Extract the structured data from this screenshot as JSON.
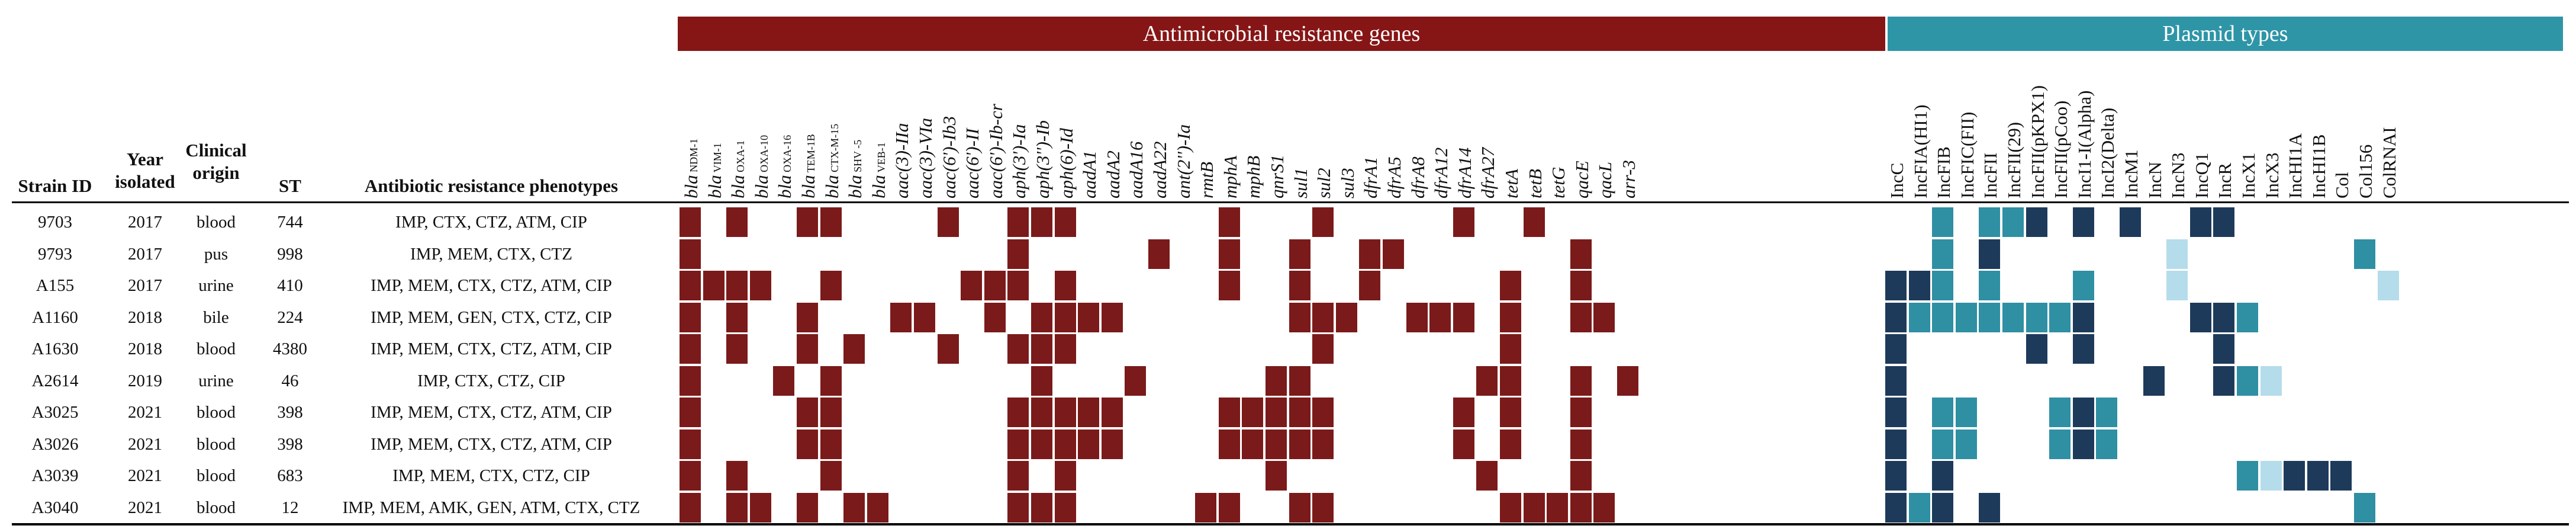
{
  "banners": {
    "amr": "Antimicrobial resistance genes",
    "plasmid": "Plasmid types"
  },
  "headers": {
    "strain_id": "Strain ID",
    "year": "Year isolated",
    "origin": "Clinical origin",
    "st": "ST",
    "phenotypes": "Antibiotic resistance phenotypes"
  },
  "gene_columns": [
    {
      "pre": "bla",
      "sub": "NDM-1",
      "post": ""
    },
    {
      "pre": "bla",
      "sub": "VIM-1",
      "post": ""
    },
    {
      "pre": "bla",
      "sub": "OXA-1",
      "post": ""
    },
    {
      "pre": "bla",
      "sub": "OXA-10",
      "post": ""
    },
    {
      "pre": "bla",
      "sub": "OXA-16",
      "post": ""
    },
    {
      "pre": "bla",
      "sub": "TEM-1B",
      "post": ""
    },
    {
      "pre": "bla",
      "sub": "CTX-M-15",
      "post": ""
    },
    {
      "pre": "bla",
      "sub": "SHV -5",
      "post": ""
    },
    {
      "pre": "bla",
      "sub": "VEB-1",
      "post": ""
    },
    {
      "pre": "aac(3)-IIa",
      "sub": "",
      "post": ""
    },
    {
      "pre": "aac(3)-VIa",
      "sub": "",
      "post": ""
    },
    {
      "pre": "aac(6')-Ib3",
      "sub": "",
      "post": ""
    },
    {
      "pre": "aac(6')-II",
      "sub": "",
      "post": ""
    },
    {
      "pre": "aac(6')-Ib-cr",
      "sub": "",
      "post": ""
    },
    {
      "pre": "aph(3')-Ia",
      "sub": "",
      "post": ""
    },
    {
      "pre": "aph(3'')-Ib",
      "sub": "",
      "post": ""
    },
    {
      "pre": "aph(6)-Id",
      "sub": "",
      "post": ""
    },
    {
      "pre": "aadA1",
      "sub": "",
      "post": ""
    },
    {
      "pre": "aadA2",
      "sub": "",
      "post": ""
    },
    {
      "pre": "aadA16",
      "sub": "",
      "post": ""
    },
    {
      "pre": "aadA22",
      "sub": "",
      "post": ""
    },
    {
      "pre": "ant(2'')-Ia",
      "sub": "",
      "post": ""
    },
    {
      "pre": "rmtB",
      "sub": "",
      "post": ""
    },
    {
      "pre": "mphA",
      "sub": "",
      "post": ""
    },
    {
      "pre": "mphB",
      "sub": "",
      "post": ""
    },
    {
      "pre": "qnrS1",
      "sub": "",
      "post": ""
    },
    {
      "pre": "sul1",
      "sub": "",
      "post": ""
    },
    {
      "pre": "sul2",
      "sub": "",
      "post": ""
    },
    {
      "pre": "sul3",
      "sub": "",
      "post": ""
    },
    {
      "pre": "dfrA1",
      "sub": "",
      "post": ""
    },
    {
      "pre": "dfrA5",
      "sub": "",
      "post": ""
    },
    {
      "pre": "dfrA8",
      "sub": "",
      "post": ""
    },
    {
      "pre": "dfrA12",
      "sub": "",
      "post": ""
    },
    {
      "pre": "dfrA14",
      "sub": "",
      "post": ""
    },
    {
      "pre": "dfrA27",
      "sub": "",
      "post": ""
    },
    {
      "pre": "tetA",
      "sub": "",
      "post": ""
    },
    {
      "pre": "tetB",
      "sub": "",
      "post": ""
    },
    {
      "pre": "tetG",
      "sub": "",
      "post": ""
    },
    {
      "pre": "qacE",
      "sub": "",
      "post": ""
    },
    {
      "pre": "qacL",
      "sub": "",
      "post": ""
    },
    {
      "pre": "arr-3",
      "sub": "",
      "post": ""
    }
  ],
  "plasmid_columns": [
    "IncC",
    "IncFIA(HI1)",
    "IncFIB",
    "IncFIC(FII)",
    "IncFII",
    "IncFII(29)",
    "IncFII(pKPX1)",
    "IncFII(pCoo)",
    "IncI1-I(Alpha)",
    "IncI2(Delta)",
    "IncM1",
    "IncN",
    "IncN3",
    "IncQ1",
    "IncR",
    "IncX1",
    "IncX3",
    "IncHI1A",
    "IncHI1B",
    "Col",
    "Col156",
    "ColRNAI"
  ],
  "colors": {
    "amr": "#7b1a1a",
    "amr_banner": "#861616",
    "plasmid_banner": "#2e95a7",
    "dark": "#1e3a5a",
    "teal": "#2f8fa3",
    "light": "#b5dcea"
  },
  "rows": [
    {
      "strain": "9703",
      "year": "2017",
      "origin": "blood",
      "st": "744",
      "phenotypes": "IMP, CTX, CTZ, ATM, CIP",
      "genes": [
        0,
        6,
        2,
        5,
        6,
        11,
        14,
        15,
        16,
        23,
        27,
        33,
        36
      ],
      "plasmids": [
        [
          "teal",
          2
        ],
        [
          "teal",
          4
        ],
        [
          "teal",
          5
        ],
        [
          "dark",
          6
        ],
        [
          "dark",
          8
        ],
        [
          "dark",
          10
        ],
        [
          "dark",
          13
        ],
        [
          "dark",
          14
        ]
      ]
    },
    {
      "strain": "9793",
      "year": "2017",
      "origin": "pus",
      "st": "998",
      "phenotypes": "IMP, MEM, CTX, CTZ",
      "genes": [
        0,
        14,
        20,
        23,
        26,
        29,
        30,
        38
      ],
      "plasmids": [
        [
          "teal",
          2
        ],
        [
          "dark",
          4
        ],
        [
          "light",
          12
        ],
        [
          "teal",
          20
        ]
      ]
    },
    {
      "strain": "A155",
      "year": "2017",
      "origin": "urine",
      "st": "410",
      "phenotypes": "IMP, MEM, CTX, CTZ, ATM, CIP",
      "genes": [
        0,
        1,
        2,
        3,
        6,
        12,
        13,
        14,
        16,
        23,
        26,
        29,
        35,
        38
      ],
      "plasmids": [
        [
          "dark",
          0
        ],
        [
          "dark",
          1
        ],
        [
          "teal",
          2
        ],
        [
          "teal",
          4
        ],
        [
          "teal",
          8
        ],
        [
          "light",
          12
        ],
        [
          "light",
          21
        ]
      ]
    },
    {
      "strain": "A1160",
      "year": "2018",
      "origin": "bile",
      "st": "224",
      "phenotypes": "IMP, MEM, GEN, CTX, CTZ, CIP",
      "genes": [
        0,
        2,
        5,
        9,
        10,
        13,
        15,
        16,
        17,
        18,
        26,
        27,
        28,
        31,
        32,
        33,
        35,
        38,
        39
      ],
      "plasmids": [
        [
          "dark",
          0
        ],
        [
          "teal",
          1
        ],
        [
          "teal",
          2
        ],
        [
          "teal",
          3
        ],
        [
          "teal",
          4
        ],
        [
          "teal",
          5
        ],
        [
          "teal",
          6
        ],
        [
          "teal",
          7
        ],
        [
          "dark",
          8
        ],
        [
          "dark",
          13
        ],
        [
          "dark",
          14
        ],
        [
          "teal",
          15
        ]
      ]
    },
    {
      "strain": "A1630",
      "year": "2018",
      "origin": "blood",
      "st": "4380",
      "phenotypes": "IMP, MEM, CTX, CTZ, ATM, CIP",
      "genes": [
        0,
        2,
        5,
        7,
        11,
        14,
        15,
        16,
        27,
        35
      ],
      "plasmids": [
        [
          "dark",
          0
        ],
        [
          "dark",
          6
        ],
        [
          "dark",
          8
        ],
        [
          "dark",
          14
        ]
      ]
    },
    {
      "strain": "A2614",
      "year": "2019",
      "origin": "urine",
      "st": "46",
      "phenotypes": "IMP, CTX, CTZ, CIP",
      "genes": [
        0,
        4,
        6,
        15,
        19,
        25,
        26,
        34,
        35,
        38,
        40
      ],
      "plasmids": [
        [
          "dark",
          0
        ],
        [
          "dark",
          11
        ],
        [
          "dark",
          14
        ],
        [
          "teal",
          15
        ],
        [
          "light",
          16
        ]
      ]
    },
    {
      "strain": "A3025",
      "year": "2021",
      "origin": "blood",
      "st": "398",
      "phenotypes": "IMP, MEM, CTX, CTZ, ATM, CIP",
      "genes": [
        0,
        5,
        6,
        14,
        15,
        16,
        17,
        18,
        23,
        24,
        25,
        26,
        27,
        33,
        35,
        38
      ],
      "plasmids": [
        [
          "dark",
          0
        ],
        [
          "teal",
          2
        ],
        [
          "teal",
          3
        ],
        [
          "teal",
          7
        ],
        [
          "dark",
          8
        ],
        [
          "teal",
          9
        ]
      ]
    },
    {
      "strain": "A3026",
      "year": "2021",
      "origin": "blood",
      "st": "398",
      "phenotypes": "IMP, MEM, CTX, CTZ, ATM, CIP",
      "genes": [
        0,
        5,
        6,
        14,
        15,
        16,
        17,
        18,
        23,
        24,
        25,
        26,
        27,
        33,
        35,
        38
      ],
      "plasmids": [
        [
          "dark",
          0
        ],
        [
          "teal",
          2
        ],
        [
          "teal",
          3
        ],
        [
          "teal",
          7
        ],
        [
          "dark",
          8
        ],
        [
          "teal",
          9
        ]
      ]
    },
    {
      "strain": "A3039",
      "year": "2021",
      "origin": "blood",
      "st": "683",
      "phenotypes": "IMP, MEM, CTX, CTZ, CIP",
      "genes": [
        0,
        2,
        6,
        14,
        16,
        25,
        34,
        38
      ],
      "plasmids": [
        [
          "dark",
          0
        ],
        [
          "dark",
          2
        ],
        [
          "teal",
          15
        ],
        [
          "light",
          16
        ],
        [
          "dark",
          17
        ],
        [
          "dark",
          18
        ],
        [
          "dark",
          19
        ]
      ]
    },
    {
      "strain": "A3040",
      "year": "2021",
      "origin": "blood",
      "st": "12",
      "phenotypes": "IMP, MEM, AMK, GEN, ATM, CTX, CTZ",
      "genes": [
        0,
        2,
        3,
        5,
        7,
        8,
        14,
        15,
        16,
        22,
        23,
        26,
        27,
        35,
        36,
        37,
        38,
        39
      ],
      "plasmids": [
        [
          "dark",
          0
        ],
        [
          "teal",
          1
        ],
        [
          "dark",
          2
        ],
        [
          "dark",
          4
        ],
        [
          "teal",
          20
        ]
      ]
    }
  ]
}
